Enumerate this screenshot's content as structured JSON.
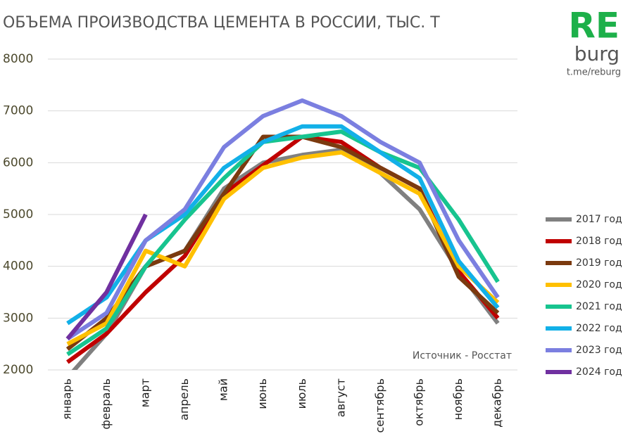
{
  "chart_data": {
    "type": "line",
    "title": "ОБЪЕМА ПРОИЗВОДСТВА ЦЕМЕНТА В РОССИИ, ТЫС. Т",
    "logo": {
      "main": "RE",
      "sub": "burg",
      "link": "t.me/reburg"
    },
    "annotation": "Источник - Росстат",
    "categories": [
      "январь",
      "февраль",
      "март",
      "апрель",
      "май",
      "июнь",
      "июль",
      "август",
      "сентябрь",
      "октябрь",
      "ноябрь",
      "декабрь"
    ],
    "ylim": [
      2000,
      8000
    ],
    "yticks": [
      2000,
      3000,
      4000,
      5000,
      6000,
      7000,
      8000
    ],
    "grid": true,
    "legend": "right",
    "series": [
      {
        "name": "2017 год",
        "color": "#808080",
        "values": [
          1850,
          2700,
          4000,
          4300,
          5500,
          6000,
          6150,
          6250,
          5800,
          5100,
          3900,
          2900
        ]
      },
      {
        "name": "2018 год",
        "color": "#c00000",
        "values": [
          2150,
          2700,
          3500,
          4200,
          5400,
          5950,
          6500,
          6400,
          5900,
          5500,
          3900,
          3000
        ]
      },
      {
        "name": "2019 год",
        "color": "#7b3a0f",
        "values": [
          2400,
          3000,
          4000,
          4300,
          5400,
          6500,
          6500,
          6300,
          5900,
          5500,
          3800,
          3100
        ]
      },
      {
        "name": "2020 год",
        "color": "#ffc000",
        "values": [
          2500,
          2900,
          4300,
          4000,
          5300,
          5900,
          6100,
          6200,
          5800,
          5400,
          4000,
          3300
        ]
      },
      {
        "name": "2021 год",
        "color": "#17c48f",
        "values": [
          2300,
          2800,
          4000,
          4900,
          5700,
          6400,
          6500,
          6600,
          6200,
          5900,
          4900,
          3700
        ]
      },
      {
        "name": "2022 год",
        "color": "#12b0e8",
        "values": [
          2900,
          3400,
          4500,
          5000,
          5900,
          6400,
          6700,
          6700,
          6200,
          5700,
          4100,
          3200
        ]
      },
      {
        "name": "2023 год",
        "color": "#7b7fe0",
        "values": [
          2600,
          3100,
          4500,
          5100,
          6300,
          6900,
          7200,
          6900,
          6400,
          6000,
          4500,
          3400
        ]
      },
      {
        "name": "2024 год",
        "color": "#7030a0",
        "values": [
          2600,
          3500,
          5000,
          null,
          null,
          null,
          null,
          null,
          null,
          null,
          null,
          null
        ]
      }
    ]
  }
}
